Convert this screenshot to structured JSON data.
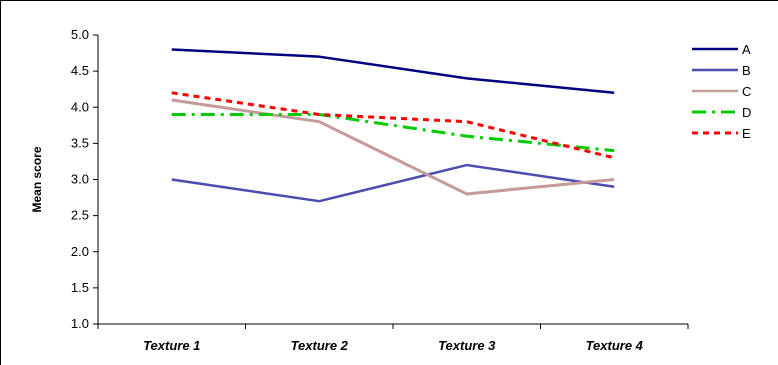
{
  "chart_data": {
    "type": "line",
    "title": "",
    "xlabel": "",
    "ylabel": "Mean score",
    "categories": [
      "Texture 1",
      "Texture 2",
      "Texture 3",
      "Texture 4"
    ],
    "ylim": [
      1.0,
      5.0
    ],
    "yticks": [
      "1.0",
      "1.5",
      "2.0",
      "2.5",
      "3.0",
      "3.5",
      "4.0",
      "4.5",
      "5.0"
    ],
    "grid": false,
    "legend_position": "right",
    "series": [
      {
        "name": "A",
        "values": [
          4.8,
          4.7,
          4.4,
          4.2
        ],
        "color": "#000080",
        "style": "solid"
      },
      {
        "name": "B",
        "values": [
          3.0,
          2.7,
          3.2,
          2.9
        ],
        "color": "#4b4bb0",
        "style": "solid"
      },
      {
        "name": "C",
        "values": [
          4.1,
          3.8,
          2.8,
          3.0
        ],
        "color": "#c49a9a",
        "style": "solid"
      },
      {
        "name": "D",
        "values": [
          3.9,
          3.9,
          3.6,
          3.4
        ],
        "color": "#00cc00",
        "style": "dashdot"
      },
      {
        "name": "E",
        "values": [
          4.2,
          3.9,
          3.8,
          3.3
        ],
        "color": "#ff0000",
        "style": "dotted"
      }
    ]
  }
}
